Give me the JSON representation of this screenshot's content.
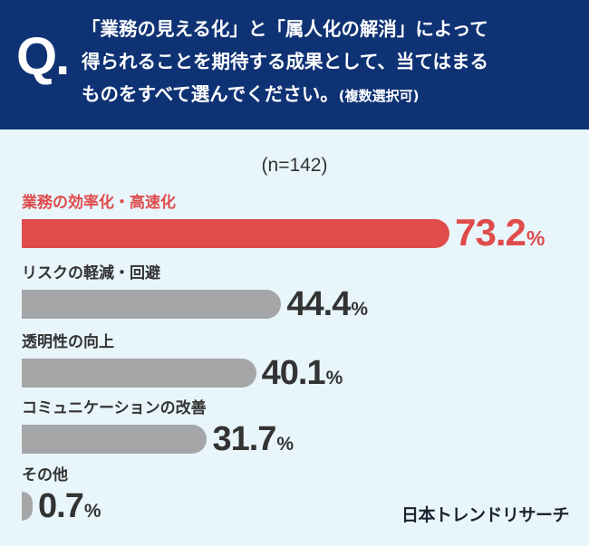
{
  "question": {
    "mark": "Q.",
    "line1": "「業務の見える化」と「属人化の解消」によって",
    "line2": "得られることを期待する成果として、当てはまる",
    "line3": "ものをすべて選んでください。",
    "note": "(複数選択可)"
  },
  "sample_size": "(n=142)",
  "brand": "日本トレンドリサーチ",
  "colors": {
    "header": "#0f3274",
    "background": "#e8f6fb",
    "highlight": "#e04b4b",
    "bar": "#a5a6a8"
  },
  "chart_data": {
    "type": "bar",
    "orientation": "horizontal",
    "categories": [
      "業務の効率化・高速化",
      "リスクの軽減・回避",
      "透明性の向上",
      "コミュニケーションの改善",
      "その他"
    ],
    "values": [
      73.2,
      44.4,
      40.1,
      31.7,
      0.7
    ],
    "value_labels": [
      "73.2",
      "44.4",
      "40.1",
      "31.7",
      "0.7"
    ],
    "unit": "%",
    "highlight_index": 0,
    "xlim": [
      0,
      100
    ]
  }
}
